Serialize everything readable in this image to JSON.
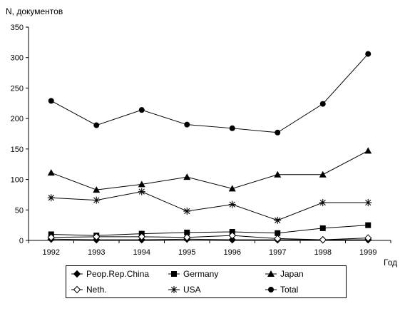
{
  "chart_data": {
    "type": "line",
    "ylabel": "N, документов",
    "xlabel": "Год",
    "ylim": [
      0,
      350
    ],
    "yticks": [
      0,
      50,
      100,
      150,
      200,
      250,
      300,
      350
    ],
    "categories": [
      "1992",
      "1993",
      "1994",
      "1995",
      "1996",
      "1997",
      "1998",
      "1999"
    ],
    "grid": false,
    "legend_position": "bottom",
    "series": [
      {
        "name": "Peop.Rep.China",
        "marker": "diamond-filled",
        "values": [
          2,
          1,
          1,
          2,
          1,
          1,
          1,
          1
        ]
      },
      {
        "name": "Germany",
        "marker": "square-filled",
        "values": [
          10,
          8,
          11,
          13,
          14,
          12,
          20,
          25
        ]
      },
      {
        "name": "Japan",
        "marker": "triangle-filled",
        "values": [
          111,
          83,
          92,
          104,
          85,
          108,
          108,
          147
        ]
      },
      {
        "name": "Neth.",
        "marker": "diamond-open",
        "values": [
          5,
          6,
          6,
          5,
          8,
          3,
          1,
          4
        ]
      },
      {
        "name": "USA",
        "marker": "asterisk",
        "values": [
          70,
          66,
          80,
          48,
          59,
          33,
          62,
          62
        ]
      },
      {
        "name": "Total",
        "marker": "circle-filled",
        "values": [
          229,
          189,
          214,
          190,
          184,
          177,
          224,
          306
        ]
      }
    ]
  }
}
